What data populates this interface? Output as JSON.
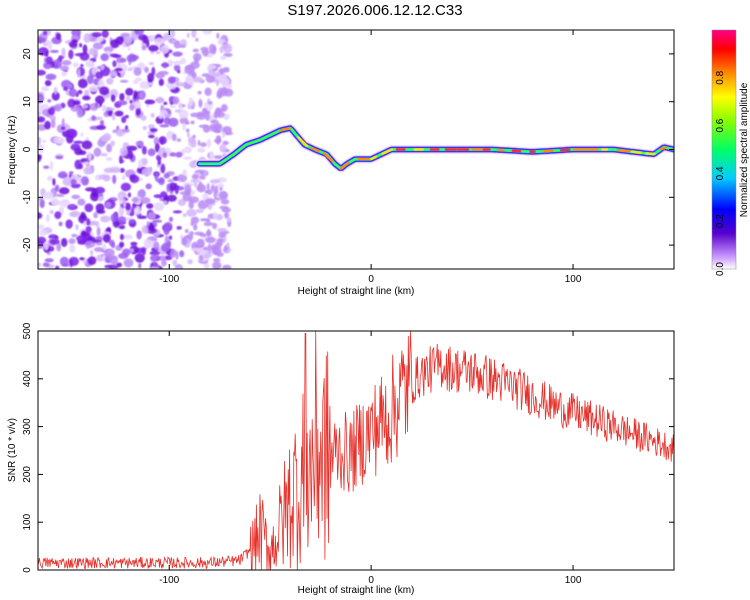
{
  "figure_title": "S197.2026.006.12.12.C33",
  "chart_data": [
    {
      "type": "heatmap",
      "name": "spectrogram",
      "xlabel": "Height of straight line (km)",
      "ylabel": "Frequency (Hz)",
      "xlim": [
        -165,
        150
      ],
      "ylim": [
        -25,
        25
      ],
      "xticks": [
        -100,
        0,
        100
      ],
      "xtick_labels": [
        "-100",
        "0",
        "100"
      ],
      "yticks": [
        -20,
        -10,
        0,
        10,
        20
      ],
      "ytick_labels": [
        "-20",
        "-10",
        "0",
        "10",
        "20"
      ],
      "noise_region_x": [
        -165,
        -70
      ],
      "ridge": {
        "x": [
          -85,
          -75,
          -68,
          -62,
          -55,
          -50,
          -45,
          -40,
          -37,
          -33,
          -28,
          -22,
          -18,
          -15,
          -12,
          -8,
          -5,
          0,
          5,
          10,
          20,
          40,
          60,
          80,
          100,
          120,
          130,
          140,
          145,
          150
        ],
        "y": [
          -3,
          -3,
          -1,
          1,
          2,
          3,
          4,
          4.5,
          3,
          1,
          0,
          -1,
          -3,
          -4,
          -3,
          -2,
          -2,
          -2,
          -1,
          0,
          0,
          0,
          0,
          -0.5,
          0,
          0,
          -0.5,
          -1,
          0.5,
          0
        ]
      },
      "colorbar": {
        "label": "Normalized spectral amplitude",
        "range": [
          0,
          1
        ],
        "ticks": [
          0.0,
          0.2,
          0.4,
          0.6,
          0.8
        ],
        "tick_labels": [
          "0.0",
          "0.2",
          "0.4",
          "0.6",
          "0.8"
        ]
      }
    },
    {
      "type": "line",
      "name": "snr",
      "xlabel": "Height of straight line (km)",
      "ylabel": "SNR (10 * v/v)",
      "xlim": [
        -165,
        150
      ],
      "ylim": [
        0,
        500
      ],
      "xticks": [
        -100,
        0,
        100
      ],
      "xtick_labels": [
        "-100",
        "0",
        "100"
      ],
      "yticks": [
        0,
        100,
        200,
        300,
        400,
        500
      ],
      "ytick_labels": [
        "0",
        "100",
        "200",
        "300",
        "400",
        "500"
      ],
      "color": "#e8302a",
      "series": [
        {
          "name": "SNR",
          "x": [
            -165,
            -140,
            -110,
            -80,
            -65,
            -58,
            -55,
            -50,
            -45,
            -40,
            -35,
            -30,
            -27,
            -25,
            -20,
            -15,
            -10,
            -5,
            0,
            5,
            10,
            15,
            20,
            25,
            30,
            35,
            40,
            50,
            60,
            70,
            80,
            90,
            100,
            110,
            120,
            130,
            140,
            150
          ],
          "y": [
            15,
            15,
            15,
            15,
            20,
            50,
            80,
            40,
            90,
            150,
            190,
            210,
            270,
            240,
            240,
            250,
            240,
            270,
            290,
            310,
            330,
            370,
            390,
            410,
            420,
            430,
            420,
            415,
            400,
            385,
            365,
            345,
            330,
            315,
            300,
            285,
            270,
            255
          ]
        }
      ]
    }
  ]
}
